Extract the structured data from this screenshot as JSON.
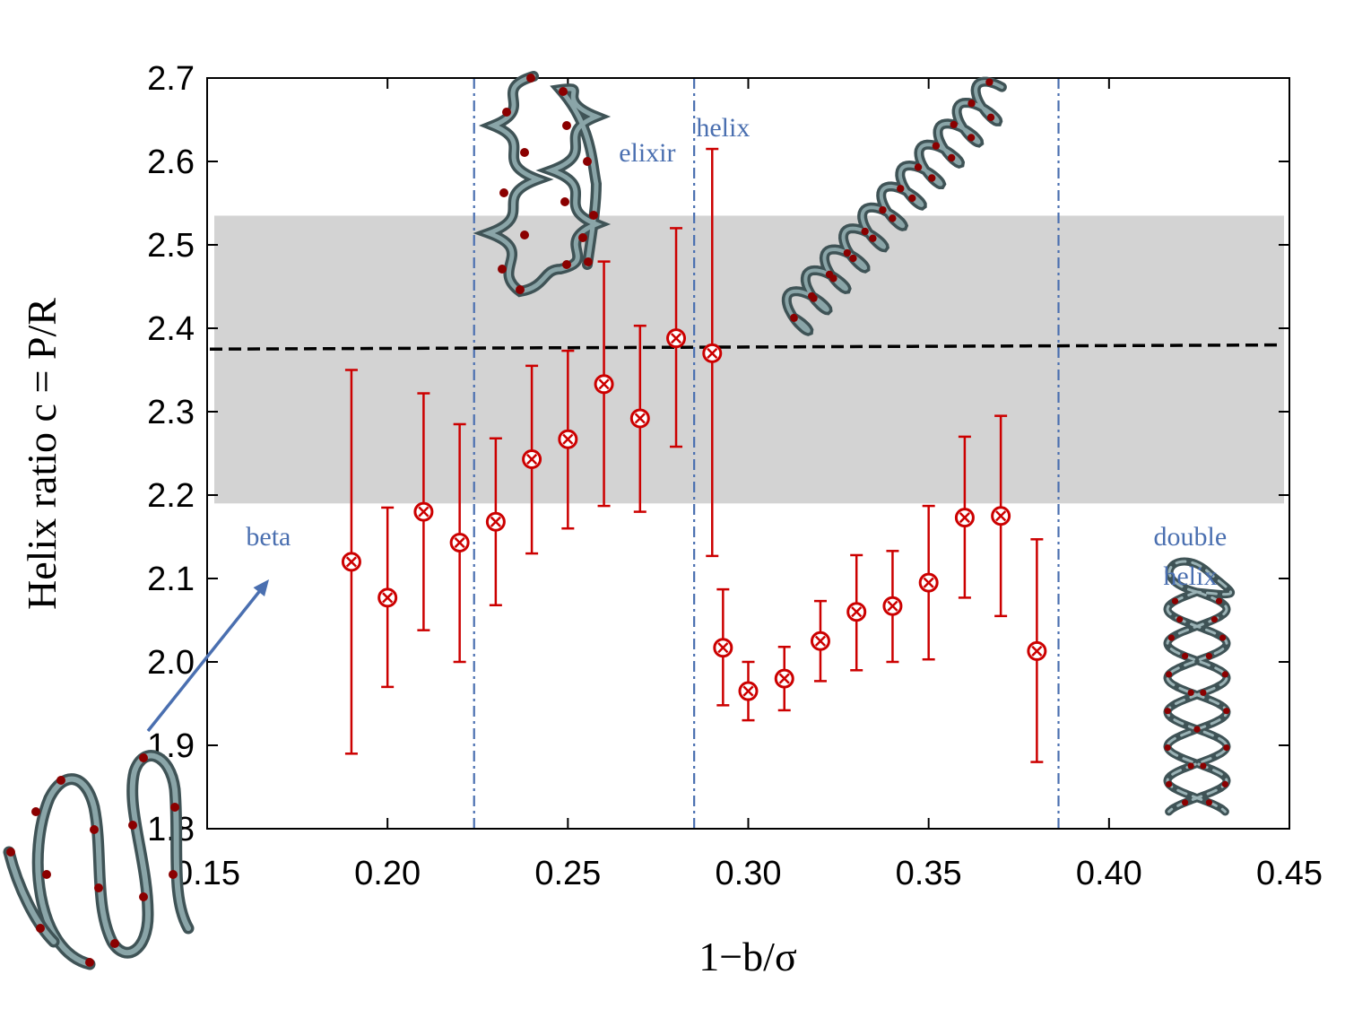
{
  "chart_data": {
    "type": "scatter",
    "title": "",
    "xlabel": "1−b/σ",
    "ylabel": "Helix ratio c = P/R",
    "xlim": [
      0.15,
      0.45
    ],
    "ylim": [
      1.8,
      2.7
    ],
    "xticks": [
      0.15,
      0.2,
      0.25,
      0.3,
      0.35,
      0.4,
      0.45
    ],
    "xtick_labels": [
      "0.15",
      "0.20",
      "0.25",
      "0.30",
      "0.35",
      "0.40",
      "0.45"
    ],
    "yticks": [
      1.8,
      1.9,
      2.0,
      2.1,
      2.2,
      2.3,
      2.4,
      2.5,
      2.6,
      2.7
    ],
    "ytick_labels": [
      "1.8",
      "1.9",
      "2.0",
      "2.1",
      "2.2",
      "2.3",
      "2.4",
      "2.5",
      "2.6",
      "2.7"
    ],
    "series": [
      {
        "name": "helix ratio",
        "color": "#cc0000",
        "points": [
          {
            "x": 0.19,
            "y": 2.12,
            "lo": 1.89,
            "hi": 2.35
          },
          {
            "x": 0.2,
            "y": 2.077,
            "lo": 1.97,
            "hi": 2.185
          },
          {
            "x": 0.21,
            "y": 2.18,
            "lo": 2.038,
            "hi": 2.322
          },
          {
            "x": 0.22,
            "y": 2.143,
            "lo": 2.0,
            "hi": 2.285
          },
          {
            "x": 0.23,
            "y": 2.168,
            "lo": 2.068,
            "hi": 2.268
          },
          {
            "x": 0.24,
            "y": 2.243,
            "lo": 2.13,
            "hi": 2.355
          },
          {
            "x": 0.25,
            "y": 2.267,
            "lo": 2.16,
            "hi": 2.373
          },
          {
            "x": 0.26,
            "y": 2.333,
            "lo": 2.187,
            "hi": 2.48
          },
          {
            "x": 0.27,
            "y": 2.292,
            "lo": 2.18,
            "hi": 2.403
          },
          {
            "x": 0.28,
            "y": 2.388,
            "lo": 2.258,
            "hi": 2.52
          },
          {
            "x": 0.29,
            "y": 2.37,
            "lo": 2.127,
            "hi": 2.615
          },
          {
            "x": 0.293,
            "y": 2.017,
            "lo": 1.948,
            "hi": 2.087
          },
          {
            "x": 0.3,
            "y": 1.965,
            "lo": 1.93,
            "hi": 2.0
          },
          {
            "x": 0.31,
            "y": 1.98,
            "lo": 1.942,
            "hi": 2.018
          },
          {
            "x": 0.32,
            "y": 2.025,
            "lo": 1.977,
            "hi": 2.073
          },
          {
            "x": 0.33,
            "y": 2.06,
            "lo": 1.99,
            "hi": 2.128
          },
          {
            "x": 0.34,
            "y": 2.067,
            "lo": 2.0,
            "hi": 2.133
          },
          {
            "x": 0.35,
            "y": 2.095,
            "lo": 2.003,
            "hi": 2.187
          },
          {
            "x": 0.36,
            "y": 2.173,
            "lo": 2.077,
            "hi": 2.27
          },
          {
            "x": 0.37,
            "y": 2.175,
            "lo": 2.055,
            "hi": 2.295
          },
          {
            "x": 0.38,
            "y": 2.013,
            "lo": 1.88,
            "hi": 2.147
          }
        ]
      }
    ],
    "reference_line": {
      "name": "mean",
      "y_start": 2.375,
      "y_end": 2.38,
      "style": "dashed",
      "color": "#000000"
    },
    "band": {
      "y_min": 2.19,
      "y_max": 2.535,
      "color": "#d3d3d3"
    },
    "region_boundaries": [
      0.224,
      0.285,
      0.386
    ],
    "regions": [
      {
        "label": "beta",
        "anchor": [
          0.167,
          2.14
        ]
      },
      {
        "label": "elixir",
        "anchor": [
          0.272,
          2.6
        ]
      },
      {
        "label": "helix",
        "anchor": [
          0.293,
          2.63
        ]
      },
      {
        "label": "double helix",
        "anchor": [
          0.4225,
          2.14
        ]
      }
    ],
    "accent_color": "#4a6fb0"
  }
}
